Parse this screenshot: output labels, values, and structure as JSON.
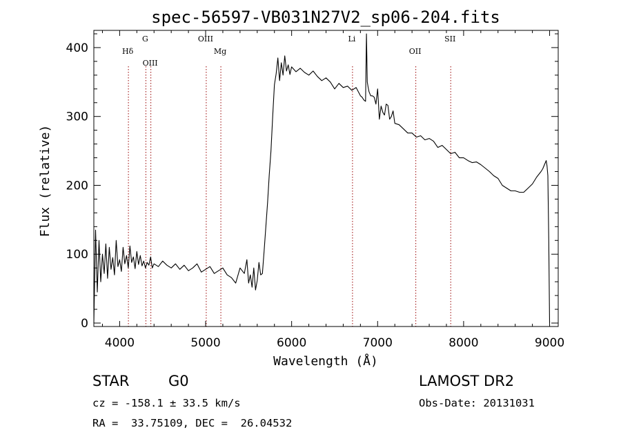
{
  "chart_data": {
    "type": "line",
    "title": "spec-56597-VB031N27V2_sp06-204.fits",
    "xlabel": "Wavelength (Å)",
    "ylabel": "Flux (relative)",
    "xlim": [
      3700,
      9100
    ],
    "ylim": [
      -5,
      425
    ],
    "xticks": [
      4000,
      5000,
      6000,
      7000,
      8000,
      9000
    ],
    "yticks": [
      0,
      100,
      200,
      300,
      400
    ],
    "grid": false,
    "line_color": "#000000",
    "marker_color": "#990000",
    "series": [
      {
        "x": [
          3700,
          3720,
          3740,
          3760,
          3780,
          3800,
          3820,
          3840,
          3860,
          3880,
          3900,
          3920,
          3940,
          3960,
          3980,
          4000,
          4020,
          4040,
          4060,
          4080,
          4100,
          4120,
          4140,
          4160,
          4180,
          4200,
          4220,
          4240,
          4260,
          4280,
          4300,
          4320,
          4340,
          4360,
          4380,
          4400,
          4450,
          4500,
          4550,
          4600,
          4650,
          4700,
          4750,
          4800,
          4850,
          4900,
          4950,
          5000,
          5050,
          5100,
          5150,
          5200,
          5250,
          5300,
          5350,
          5400,
          5450,
          5480,
          5500,
          5520,
          5540,
          5560,
          5580,
          5600,
          5620,
          5640,
          5660,
          5680,
          5700,
          5720,
          5740,
          5760,
          5780,
          5800,
          5820,
          5840,
          5860,
          5880,
          5900,
          5920,
          5940,
          5960,
          5980,
          6000,
          6050,
          6100,
          6150,
          6200,
          6250,
          6300,
          6350,
          6400,
          6450,
          6500,
          6550,
          6600,
          6650,
          6700,
          6750,
          6800,
          6820,
          6840,
          6860,
          6870,
          6880,
          6890,
          6900,
          6920,
          6940,
          6960,
          6980,
          7000,
          7020,
          7040,
          7060,
          7080,
          7100,
          7120,
          7140,
          7160,
          7180,
          7200,
          7250,
          7300,
          7350,
          7400,
          7450,
          7500,
          7550,
          7600,
          7650,
          7700,
          7750,
          7800,
          7850,
          7900,
          7950,
          8000,
          8050,
          8100,
          8150,
          8200,
          8250,
          8300,
          8350,
          8400,
          8450,
          8500,
          8550,
          8600,
          8650,
          8700,
          8750,
          8800,
          8850,
          8900,
          8920,
          8940,
          8960,
          8970,
          8980,
          8990,
          9000
        ],
        "y": [
          0,
          135,
          45,
          120,
          60,
          100,
          72,
          115,
          65,
          110,
          78,
          95,
          70,
          120,
          82,
          92,
          75,
          110,
          86,
          98,
          80,
          112,
          88,
          96,
          79,
          104,
          85,
          98,
          83,
          90,
          80,
          88,
          84,
          96,
          80,
          86,
          82,
          90,
          84,
          80,
          86,
          78,
          84,
          76,
          80,
          86,
          74,
          78,
          82,
          72,
          76,
          80,
          70,
          66,
          58,
          80,
          72,
          92,
          58,
          70,
          52,
          80,
          48,
          62,
          88,
          70,
          72,
          105,
          140,
          175,
          215,
          250,
          300,
          346,
          362,
          385,
          352,
          378,
          360,
          388,
          366,
          375,
          361,
          372,
          365,
          370,
          364,
          360,
          366,
          358,
          352,
          356,
          350,
          340,
          348,
          342,
          344,
          338,
          342,
          330,
          328,
          324,
          322,
          420,
          350,
          342,
          336,
          330,
          330,
          328,
          318,
          340,
          296,
          315,
          306,
          302,
          318,
          316,
          296,
          300,
          308,
          290,
          288,
          282,
          276,
          276,
          270,
          272,
          266,
          268,
          264,
          255,
          258,
          252,
          246,
          248,
          240,
          240,
          236,
          233,
          234,
          230,
          225,
          220,
          214,
          210,
          200,
          196,
          192,
          192,
          190,
          190,
          196,
          202,
          212,
          220,
          224,
          230,
          236,
          228,
          214,
          120,
          0
        ]
      }
    ],
    "line_markers": [
      {
        "label": "Hδ",
        "x": 4102
      },
      {
        "label": "G",
        "x": 4305
      },
      {
        "label": "OIII",
        "x": 4363
      },
      {
        "label": "OIII",
        "x": 5007
      },
      {
        "label": "Mg",
        "x": 5177
      },
      {
        "label": "Li",
        "x": 6708
      },
      {
        "label": "OII",
        "x": 7444
      },
      {
        "label": "SII",
        "x": 7850
      }
    ]
  },
  "info": {
    "classification": "STAR",
    "subclass": "G0",
    "survey": "LAMOST DR2",
    "redshift": "cz = -158.1 ± 33.5 km/s",
    "obs_date": "Obs-Date: 20131031",
    "coords": "RA =  33.75109, DEC =  26.04532"
  }
}
